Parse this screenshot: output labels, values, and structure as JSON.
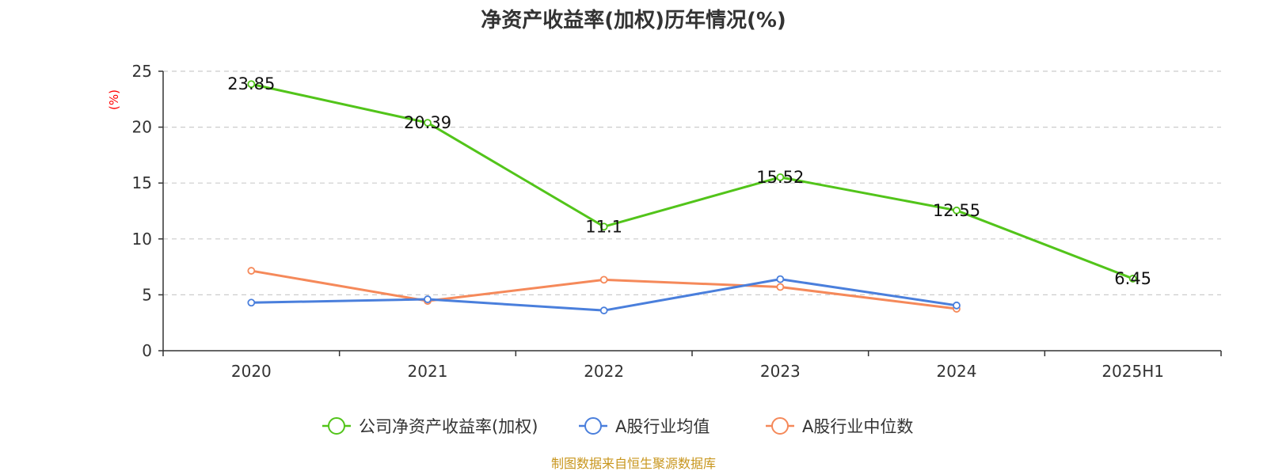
{
  "chart_data": {
    "type": "line",
    "title": "净资产收益率(加权)历年情况(%)",
    "ylabel": "(%)",
    "xlabel": "",
    "categories": [
      "2020",
      "2021",
      "2022",
      "2023",
      "2024",
      "2025H1"
    ],
    "ylim": [
      0,
      25
    ],
    "yticks": [
      0,
      5,
      10,
      15,
      20,
      25
    ],
    "grid": true,
    "legend_position": "bottom",
    "series": [
      {
        "name": "公司净资产收益率(加权)",
        "color": "#52c41a",
        "values": [
          23.85,
          20.39,
          11.1,
          15.52,
          12.55,
          6.45
        ],
        "labels": [
          "23.85",
          "20.39",
          "11.1",
          "15.52",
          "12.55",
          "6.45"
        ]
      },
      {
        "name": "A股行业均值",
        "color": "#4a7fdc",
        "values": [
          4.3,
          4.6,
          3.6,
          6.4,
          4.05,
          null
        ]
      },
      {
        "name": "A股行业中位数",
        "color": "#f5895a",
        "values": [
          7.15,
          4.45,
          6.35,
          5.7,
          3.75,
          null
        ]
      }
    ]
  },
  "source_note": "制图数据来自恒生聚源数据库",
  "colors": {
    "unit_label": "#ff0000",
    "source_note": "#c8961e"
  }
}
